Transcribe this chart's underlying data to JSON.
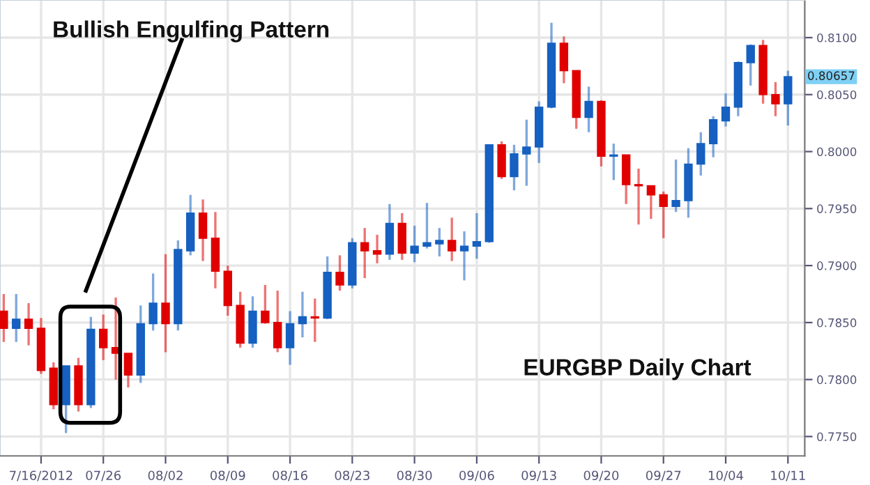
{
  "chart_data": {
    "type": "candlestick",
    "annotations": [
      "Bullish Engulfing Pattern",
      "EURGBP Daily Chart",
      {
        "text": "0.80657",
        "x": "10/11",
        "y": 0.80657
      }
    ],
    "categories": [
      null,
      null,
      null,
      "7/16/2012",
      null,
      null,
      null,
      null,
      "07/26",
      null,
      null,
      null,
      null,
      "08/02",
      null,
      null,
      null,
      null,
      "08/09",
      null,
      null,
      null,
      null,
      "08/16",
      null,
      null,
      null,
      null,
      "08/23",
      null,
      null,
      null,
      null,
      "08/30",
      null,
      null,
      null,
      null,
      "09/06",
      null,
      null,
      null,
      null,
      "09/13",
      null,
      null,
      null,
      null,
      "09/20",
      null,
      null,
      null,
      null,
      "09/27",
      null,
      null,
      null,
      null,
      "10/04",
      null,
      null,
      null,
      null,
      "10/11"
    ],
    "ohlc": [
      [
        0.786,
        0.7875,
        0.7833,
        0.7845
      ],
      [
        0.7845,
        0.7875,
        0.7833,
        0.7853
      ],
      [
        0.7853,
        0.7867,
        0.783,
        0.7845
      ],
      [
        0.7845,
        0.7854,
        0.7805,
        0.7808
      ],
      [
        0.781,
        0.7815,
        0.7774,
        0.7778
      ],
      [
        0.7778,
        0.7812,
        0.7753,
        0.7812
      ],
      [
        0.7812,
        0.7819,
        0.7772,
        0.7778
      ],
      [
        0.7778,
        0.7855,
        0.7775,
        0.7844
      ],
      [
        0.7844,
        0.7857,
        0.7817,
        0.7828
      ],
      [
        0.7828,
        0.7872,
        0.78,
        0.7823
      ],
      [
        0.7823,
        0.7823,
        0.7793,
        0.7804
      ],
      [
        0.7804,
        0.7865,
        0.7797,
        0.7849
      ],
      [
        0.7849,
        0.7893,
        0.7843,
        0.7867
      ],
      [
        0.7867,
        0.791,
        0.7824,
        0.7849
      ],
      [
        0.7849,
        0.7922,
        0.7843,
        0.7914
      ],
      [
        0.7913,
        0.7962,
        0.7909,
        0.7946
      ],
      [
        0.7946,
        0.7958,
        0.7904,
        0.7924
      ],
      [
        0.7924,
        0.7947,
        0.788,
        0.7895
      ],
      [
        0.7895,
        0.79,
        0.7856,
        0.7865
      ],
      [
        0.7865,
        0.7877,
        0.7828,
        0.7832
      ],
      [
        0.7832,
        0.7873,
        0.7828,
        0.786
      ],
      [
        0.786,
        0.7883,
        0.7849,
        0.785
      ],
      [
        0.785,
        0.7878,
        0.7824,
        0.7828
      ],
      [
        0.7828,
        0.786,
        0.7813,
        0.7849
      ],
      [
        0.7849,
        0.7877,
        0.7837,
        0.7855
      ],
      [
        0.7855,
        0.7871,
        0.7833,
        0.7854
      ],
      [
        0.7854,
        0.7908,
        0.7853,
        0.7894
      ],
      [
        0.7894,
        0.7909,
        0.7878,
        0.7883
      ],
      [
        0.7883,
        0.7924,
        0.788,
        0.792
      ],
      [
        0.792,
        0.7933,
        0.7889,
        0.7913
      ],
      [
        0.7913,
        0.7927,
        0.7902,
        0.791
      ],
      [
        0.791,
        0.7954,
        0.7905,
        0.7937
      ],
      [
        0.7937,
        0.7946,
        0.7905,
        0.7911
      ],
      [
        0.7911,
        0.7935,
        0.7903,
        0.7917
      ],
      [
        0.7917,
        0.7955,
        0.7915,
        0.792
      ],
      [
        0.7919,
        0.7933,
        0.7908,
        0.7922
      ],
      [
        0.7922,
        0.7942,
        0.7904,
        0.7913
      ],
      [
        0.7913,
        0.793,
        0.7887,
        0.7917
      ],
      [
        0.7917,
        0.7946,
        0.7906,
        0.7921
      ],
      [
        0.7921,
        0.8006,
        0.792,
        0.8006
      ],
      [
        0.8006,
        0.8009,
        0.7976,
        0.7978
      ],
      [
        0.7978,
        0.8006,
        0.7966,
        0.7998
      ],
      [
        0.7998,
        0.8028,
        0.797,
        0.8004
      ],
      [
        0.8004,
        0.8044,
        0.799,
        0.8039
      ],
      [
        0.8039,
        0.8113,
        0.8038,
        0.8095
      ],
      [
        0.8095,
        0.8101,
        0.806,
        0.8071
      ],
      [
        0.8071,
        0.8071,
        0.802,
        0.803
      ],
      [
        0.803,
        0.8057,
        0.8017,
        0.8044
      ],
      [
        0.8044,
        0.8045,
        0.7987,
        0.7996
      ],
      [
        0.7996,
        0.8007,
        0.7975,
        0.7997
      ],
      [
        0.7997,
        0.7997,
        0.7954,
        0.7971
      ],
      [
        0.7971,
        0.7985,
        0.7936,
        0.797
      ],
      [
        0.797,
        0.797,
        0.7941,
        0.7962
      ],
      [
        0.7962,
        0.7965,
        0.7924,
        0.7952
      ],
      [
        0.7952,
        0.7993,
        0.7947,
        0.7957
      ],
      [
        0.7957,
        0.8003,
        0.7942,
        0.7989
      ],
      [
        0.7989,
        0.8017,
        0.7979,
        0.8007
      ],
      [
        0.8007,
        0.8031,
        0.7995,
        0.8028
      ],
      [
        0.8027,
        0.8051,
        0.8022,
        0.8039
      ],
      [
        0.8039,
        0.8079,
        0.8031,
        0.8078
      ],
      [
        0.8078,
        0.8094,
        0.8058,
        0.8093
      ],
      [
        0.8093,
        0.8098,
        0.8042,
        0.805
      ],
      [
        0.805,
        0.8061,
        0.8031,
        0.8042
      ],
      [
        0.8042,
        0.8071,
        0.8023,
        0.80657
      ]
    ],
    "colors": [
      "#e00000",
      "#1560c0",
      "#e00000",
      "#e00000",
      "#e00000",
      "#1560c0",
      "#e00000",
      "#1560c0",
      "#e00000",
      "#e00000",
      "#e00000",
      "#1560c0",
      "#1560c0",
      "#e00000",
      "#1560c0",
      "#1560c0",
      "#e00000",
      "#e00000",
      "#e00000",
      "#e00000",
      "#1560c0",
      "#e00000",
      "#e00000",
      "#1560c0",
      "#1560c0",
      "#e00000",
      "#1560c0",
      "#e00000",
      "#1560c0",
      "#e00000",
      "#e00000",
      "#1560c0",
      "#e00000",
      "#1560c0",
      "#1560c0",
      "#1560c0",
      "#e00000",
      "#1560c0",
      "#1560c0",
      "#1560c0",
      "#e00000",
      "#1560c0",
      "#1560c0",
      "#1560c0",
      "#1560c0",
      "#e00000",
      "#e00000",
      "#1560c0",
      "#e00000",
      "#1560c0",
      "#e00000",
      "#e00000",
      "#e00000",
      "#e00000",
      "#1560c0",
      "#1560c0",
      "#1560c0",
      "#1560c0",
      "#1560c0",
      "#1560c0",
      "#1560c0",
      "#e00000",
      "#e00000",
      "#1560c0"
    ],
    "ylim": [
      0.7733,
      0.8133
    ],
    "yticks": [
      {
        "value": 0.775,
        "label": "0.7750"
      },
      {
        "value": 0.78,
        "label": "0.7800"
      },
      {
        "value": 0.785,
        "label": "0.7850"
      },
      {
        "value": 0.79,
        "label": "0.7900"
      },
      {
        "value": 0.795,
        "label": "0.7950"
      },
      {
        "value": 0.8,
        "label": "0.8000"
      },
      {
        "value": 0.805,
        "label": "0.8050"
      },
      {
        "value": 0.81,
        "label": "0.8100"
      }
    ],
    "grid": true
  }
}
